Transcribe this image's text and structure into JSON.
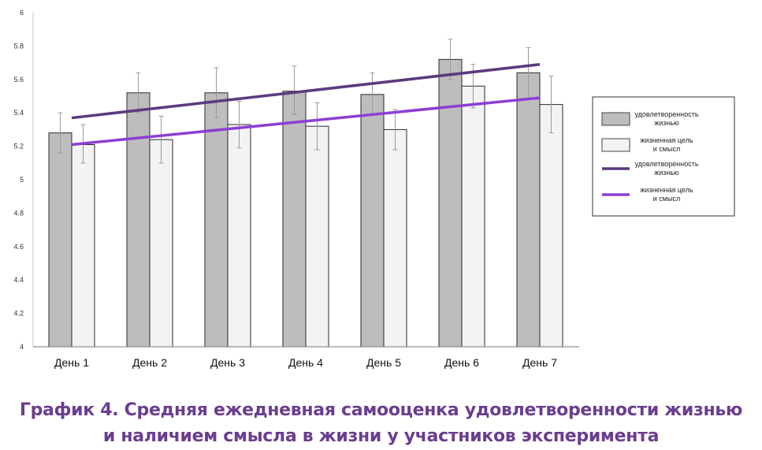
{
  "chart_data": {
    "type": "bar",
    "categories": [
      "День 1",
      "День 2",
      "День 3",
      "День 4",
      "День 5",
      "День 6",
      "День 7"
    ],
    "ylim": [
      4,
      6
    ],
    "yticks": [
      "4",
      "4.2",
      "4.4",
      "4.6",
      "4.8",
      "5",
      "5.2",
      "5.4",
      "5.6",
      "5.8",
      "6"
    ],
    "series": [
      {
        "name": "удовлетворенность жизнью",
        "kind": "bar",
        "color": "#bdbdbd",
        "values": [
          5.28,
          5.52,
          5.52,
          5.53,
          5.51,
          5.72,
          5.64
        ],
        "error": [
          [
            5.16,
            5.4
          ],
          [
            5.4,
            5.64
          ],
          [
            5.37,
            5.67
          ],
          [
            5.39,
            5.68
          ],
          [
            5.39,
            5.64
          ],
          [
            5.6,
            5.84
          ],
          [
            5.49,
            5.79
          ]
        ]
      },
      {
        "name": "жизненная цель и смысл",
        "kind": "bar",
        "color": "#f3f3f3",
        "values": [
          5.21,
          5.24,
          5.33,
          5.32,
          5.3,
          5.56,
          5.45
        ],
        "error": [
          [
            5.1,
            5.33
          ],
          [
            5.1,
            5.38
          ],
          [
            5.19,
            5.47
          ],
          [
            5.18,
            5.46
          ],
          [
            5.18,
            5.42
          ],
          [
            5.43,
            5.69
          ],
          [
            5.28,
            5.62
          ]
        ]
      },
      {
        "name": "удовлетворенность жизнью",
        "kind": "trendline",
        "color": "#5b3a7e",
        "from": 5.37,
        "to": 5.69
      },
      {
        "name": "жизненная цель и смысл",
        "kind": "trendline",
        "color": "#8b3fd4",
        "from": 5.21,
        "to": 5.49
      }
    ],
    "legend_position": "right",
    "legend": [
      {
        "line1": "удовлетворенность",
        "line2": "жизнью",
        "symbol": "box",
        "color": "#bdbdbd"
      },
      {
        "line1": "жизненная цель",
        "line2": "и смысл",
        "symbol": "box",
        "color": "#f3f3f3"
      },
      {
        "line1": "удовлетворенность",
        "line2": "жизнью",
        "symbol": "line",
        "color": "#5b3a7e"
      },
      {
        "line1": "жизненная цель",
        "line2": "и смысл",
        "symbol": "line",
        "color": "#8b3fd4"
      }
    ],
    "grid": false
  },
  "caption": {
    "line1": "График 4. Средняя ежедневная самооценка удовлетворенности жизнью",
    "line2": "и наличием смысла в жизни у участников эксперимента"
  }
}
